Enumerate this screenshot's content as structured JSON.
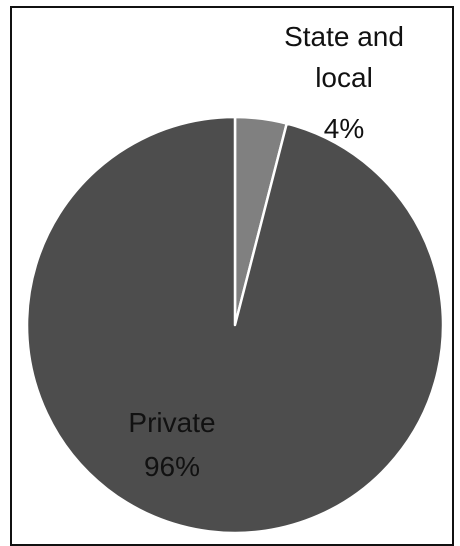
{
  "chart_data": {
    "type": "pie",
    "start_angle_deg": 0,
    "direction": "clockwise",
    "slices": [
      {
        "label_lines": [
          "State and",
          "local"
        ],
        "value": 4,
        "value_label": "4%",
        "color": "#808080",
        "label_color": "#111111"
      },
      {
        "label_lines": [
          "Private"
        ],
        "value": 96,
        "value_label": "96%",
        "color": "#4d4d4d",
        "label_color": "#111111"
      }
    ],
    "slice_border_color": "#ffffff"
  }
}
